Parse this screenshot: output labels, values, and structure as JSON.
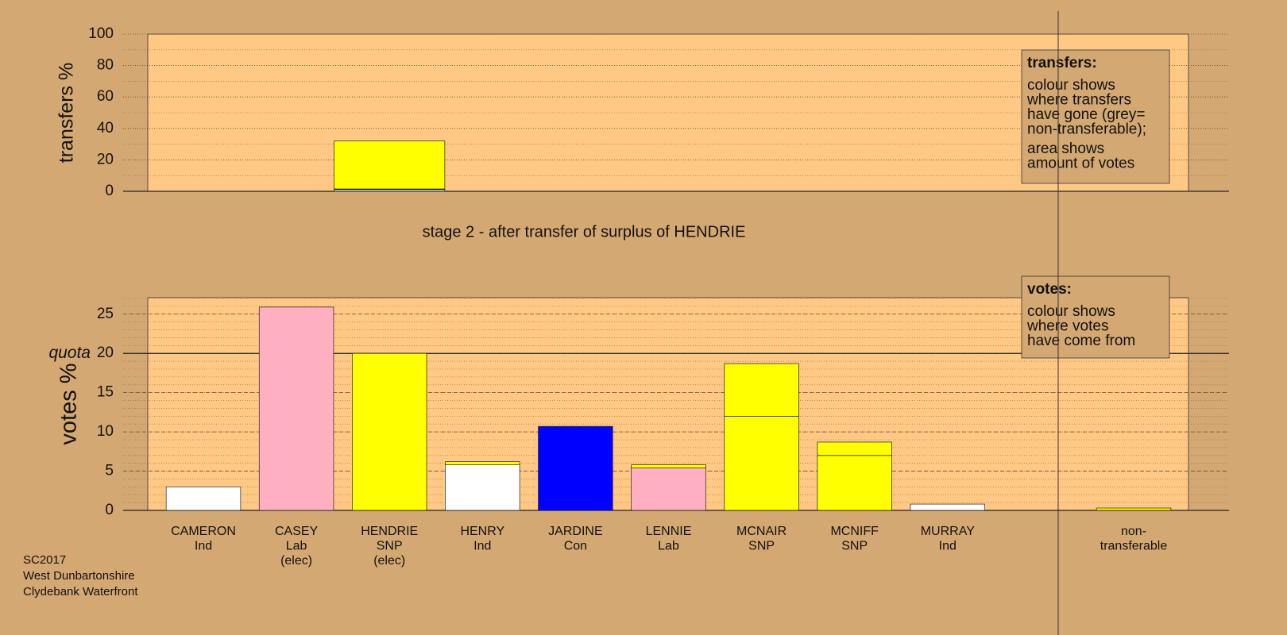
{
  "chart_data": [
    {
      "type": "bar",
      "stacked": true,
      "ylabel": "transfers %",
      "ylim": [
        0,
        100
      ],
      "yticks": [
        0,
        20,
        40,
        60,
        80,
        100
      ],
      "minor_ystep": 10,
      "subtitle": "stage 2 - after transfer of surplus of HENDRIE",
      "series": [
        {
          "color": "#ffffff",
          "values": [
            null,
            null,
            1,
            null,
            null,
            null,
            null,
            null,
            null,
            null,
            null
          ]
        },
        {
          "color": "#0000ff",
          "values": [
            null,
            null,
            0.5,
            null,
            null,
            null,
            null,
            null,
            null,
            null,
            null
          ]
        },
        {
          "color": "#ffff00",
          "values": [
            null,
            null,
            30.5,
            null,
            null,
            null,
            null,
            null,
            null,
            null,
            null
          ]
        }
      ],
      "legend_box": {
        "heading": "transfers:",
        "lines": [
          "colour shows",
          "where transfers",
          "have gone (grey=",
          "non-transferable);"
        ],
        "lines2": [
          "area shows",
          "amount of votes"
        ]
      }
    },
    {
      "type": "bar",
      "stacked": true,
      "ylabel": "votes %",
      "ylim": [
        0,
        27.1
      ],
      "yticks": [
        0,
        5,
        10,
        15,
        20,
        25
      ],
      "minor_ystep": 1,
      "quota": {
        "label": "quota",
        "value": 20
      },
      "categories": [
        [
          "CAMERON",
          "Ind"
        ],
        [
          "CASEY",
          "Lab",
          "(elec)"
        ],
        [
          "HENDRIE",
          "SNP",
          "(elec)"
        ],
        [
          "HENRY",
          "Ind"
        ],
        [
          "JARDINE",
          "Con"
        ],
        [
          "LENNIE",
          "Lab"
        ],
        [
          "MCNAIR",
          "SNP"
        ],
        [
          "MCNIFF",
          "SNP"
        ],
        [
          "MURRAY",
          "Ind"
        ],
        null,
        [
          "non-",
          "transferable"
        ]
      ],
      "series": [
        {
          "colors": [
            "#ffffff",
            "#ffb0c0",
            "#ffff00",
            "#ffffff",
            "#0000ff",
            "#ffb0c0",
            "#ffff00",
            "#ffff00",
            "#ffffff",
            null,
            null
          ],
          "values": [
            3.0,
            25.9,
            20.0,
            5.8,
            10.7,
            5.4,
            12.0,
            7.0,
            0.8,
            null,
            null
          ]
        },
        {
          "color": "#ffff00",
          "values": [
            null,
            null,
            null,
            0.4,
            null,
            0.4,
            6.7,
            1.7,
            null,
            null,
            0.3
          ]
        }
      ],
      "legend_box": {
        "heading": "votes:",
        "lines": [
          "colour shows",
          "where votes",
          "have come from"
        ]
      }
    }
  ],
  "footer": [
    "SC2017",
    "West Dunbartonshire",
    "Clydebank Waterfront"
  ]
}
